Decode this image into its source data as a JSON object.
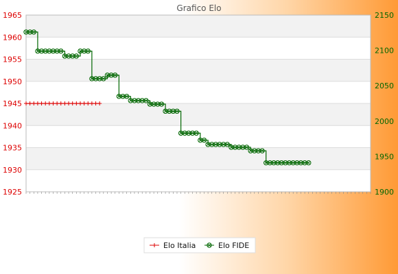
{
  "chart_data": {
    "type": "line",
    "title": "Grafico Elo",
    "y_left": {
      "min": 1925,
      "max": 1965,
      "ticks": [
        1925,
        1930,
        1935,
        1940,
        1945,
        1950,
        1955,
        1960,
        1965
      ],
      "color": "#dd0000"
    },
    "y_right": {
      "min": 1900,
      "max": 2150,
      "ticks": [
        1900,
        1950,
        2000,
        2050,
        2100,
        2150
      ],
      "color": "#006600"
    },
    "x_tick_count": 90,
    "grid": true,
    "legend_position": "bottom",
    "series": [
      {
        "name": "Elo Italia",
        "axis": "left",
        "color": "#dd0000",
        "marker": "plus",
        "values": [
          1945,
          1945,
          1945,
          1945,
          1945,
          1945,
          1945,
          1945,
          1945,
          1945,
          1945,
          1945,
          1945,
          1945,
          1945,
          1945,
          1945,
          1945,
          1945,
          1945
        ]
      },
      {
        "name": "Elo FIDE",
        "axis": "right",
        "color": "#006600",
        "marker": "circle-x",
        "values": [
          2126,
          2126,
          2126,
          2099,
          2099,
          2099,
          2099,
          2099,
          2099,
          2099,
          2092,
          2092,
          2092,
          2092,
          2099,
          2099,
          2099,
          2060,
          2060,
          2060,
          2060,
          2065,
          2065,
          2065,
          2035,
          2035,
          2035,
          2029,
          2029,
          2029,
          2029,
          2029,
          2024,
          2024,
          2024,
          2024,
          2014,
          2014,
          2014,
          2014,
          1983,
          1983,
          1983,
          1983,
          1983,
          1973,
          1973,
          1967,
          1967,
          1967,
          1967,
          1967,
          1967,
          1963,
          1963,
          1963,
          1963,
          1963,
          1958,
          1958,
          1958,
          1958,
          1941,
          1941,
          1941,
          1941,
          1941,
          1941,
          1941,
          1941,
          1941,
          1941,
          1941,
          1941
        ]
      }
    ]
  }
}
